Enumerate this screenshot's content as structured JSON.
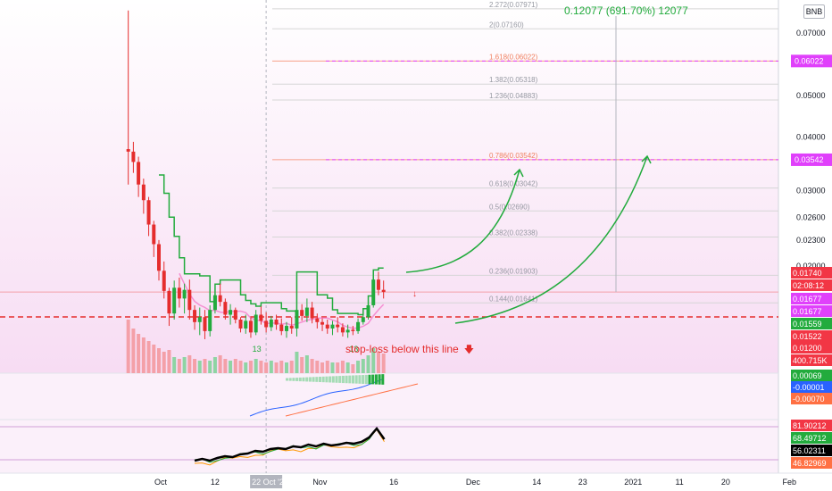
{
  "chart_data": {
    "type": "candlestick",
    "symbol_currency": "BNB",
    "price_scale": {
      "ticks": [
        "0.07000",
        "0.06000",
        "0.05000",
        "0.04000",
        "0.03000",
        "0.02600",
        "0.02300",
        "0.02000"
      ],
      "min": 0.0118,
      "max": 0.082,
      "scale": "log"
    },
    "time_axis": {
      "labels": [
        {
          "text": "Oct",
          "date": "2020-10-01"
        },
        {
          "text": "12",
          "date": "2020-10-12"
        },
        {
          "text": "22 Oct '20",
          "date": "2020-10-22",
          "highlighted": true
        },
        {
          "text": "Nov",
          "date": "2020-11-01"
        },
        {
          "text": "16",
          "date": "2020-11-16"
        },
        {
          "text": "Dec",
          "date": "2020-12-01"
        },
        {
          "text": "14",
          "date": "2020-12-14"
        },
        {
          "text": "23",
          "date": "2020-12-23"
        },
        {
          "text": "2021",
          "date": "2021-01-01"
        },
        {
          "text": "11",
          "date": "2021-01-11"
        },
        {
          "text": "20",
          "date": "2021-01-20"
        },
        {
          "text": "Feb",
          "date": "2021-02-01"
        }
      ]
    },
    "candles": [
      {
        "date": "2020-09-25",
        "open": 0.0375,
        "high": 0.079,
        "low": 0.031,
        "close": 0.037
      },
      {
        "date": "2020-09-26",
        "open": 0.037,
        "high": 0.039,
        "low": 0.033,
        "close": 0.035
      },
      {
        "date": "2020-09-27",
        "open": 0.035,
        "high": 0.036,
        "low": 0.029,
        "close": 0.031
      },
      {
        "date": "2020-09-28",
        "open": 0.031,
        "high": 0.032,
        "low": 0.0265,
        "close": 0.0285
      },
      {
        "date": "2020-09-29",
        "open": 0.0285,
        "high": 0.029,
        "low": 0.0235,
        "close": 0.025
      },
      {
        "date": "2020-09-30",
        "open": 0.025,
        "high": 0.0255,
        "low": 0.021,
        "close": 0.0225
      },
      {
        "date": "2020-10-01",
        "open": 0.0225,
        "high": 0.023,
        "low": 0.0185,
        "close": 0.0195
      },
      {
        "date": "2020-10-02",
        "open": 0.0195,
        "high": 0.0205,
        "low": 0.0168,
        "close": 0.0175
      },
      {
        "date": "2020-10-03",
        "open": 0.0175,
        "high": 0.0178,
        "low": 0.0145,
        "close": 0.0155
      },
      {
        "date": "2020-10-04",
        "open": 0.0155,
        "high": 0.0185,
        "low": 0.015,
        "close": 0.0178
      },
      {
        "date": "2020-10-05",
        "open": 0.0178,
        "high": 0.0188,
        "low": 0.016,
        "close": 0.0168
      },
      {
        "date": "2020-10-06",
        "open": 0.0168,
        "high": 0.0182,
        "low": 0.0155,
        "close": 0.0176
      },
      {
        "date": "2020-10-07",
        "open": 0.0176,
        "high": 0.0186,
        "low": 0.015,
        "close": 0.0158
      },
      {
        "date": "2020-10-08",
        "open": 0.0158,
        "high": 0.0162,
        "low": 0.0142,
        "close": 0.0148
      },
      {
        "date": "2020-10-09",
        "open": 0.0148,
        "high": 0.016,
        "low": 0.0138,
        "close": 0.0152
      },
      {
        "date": "2020-10-10",
        "open": 0.0152,
        "high": 0.0158,
        "low": 0.0135,
        "close": 0.0141
      },
      {
        "date": "2020-10-11",
        "open": 0.0141,
        "high": 0.0162,
        "low": 0.0137,
        "close": 0.0158
      },
      {
        "date": "2020-10-12",
        "open": 0.0158,
        "high": 0.0178,
        "low": 0.0155,
        "close": 0.0171
      },
      {
        "date": "2020-10-13",
        "open": 0.0171,
        "high": 0.0182,
        "low": 0.0161,
        "close": 0.0165
      },
      {
        "date": "2020-10-14",
        "open": 0.0165,
        "high": 0.0168,
        "low": 0.015,
        "close": 0.0154
      },
      {
        "date": "2020-10-15",
        "open": 0.0154,
        "high": 0.0163,
        "low": 0.0146,
        "close": 0.0158
      },
      {
        "date": "2020-10-16",
        "open": 0.0158,
        "high": 0.016,
        "low": 0.0147,
        "close": 0.015
      },
      {
        "date": "2020-10-17",
        "open": 0.015,
        "high": 0.0152,
        "low": 0.014,
        "close": 0.0143
      },
      {
        "date": "2020-10-18",
        "open": 0.0143,
        "high": 0.0154,
        "low": 0.0139,
        "close": 0.0149
      },
      {
        "date": "2020-10-19",
        "open": 0.0149,
        "high": 0.0152,
        "low": 0.0136,
        "close": 0.014
      },
      {
        "date": "2020-10-20",
        "open": 0.014,
        "high": 0.0158,
        "low": 0.0138,
        "close": 0.0154
      },
      {
        "date": "2020-10-21",
        "open": 0.0154,
        "high": 0.0161,
        "low": 0.0146,
        "close": 0.0149
      },
      {
        "date": "2020-10-22",
        "open": 0.0149,
        "high": 0.0156,
        "low": 0.014,
        "close": 0.0144
      },
      {
        "date": "2020-10-23",
        "open": 0.0144,
        "high": 0.0153,
        "low": 0.0141,
        "close": 0.015
      },
      {
        "date": "2020-10-24",
        "open": 0.015,
        "high": 0.0154,
        "low": 0.0142,
        "close": 0.0146
      },
      {
        "date": "2020-10-25",
        "open": 0.0146,
        "high": 0.0151,
        "low": 0.0138,
        "close": 0.0141
      },
      {
        "date": "2020-10-26",
        "open": 0.0141,
        "high": 0.0148,
        "low": 0.0136,
        "close": 0.0145
      },
      {
        "date": "2020-10-27",
        "open": 0.0145,
        "high": 0.0152,
        "low": 0.0139,
        "close": 0.0143
      },
      {
        "date": "2020-10-28",
        "open": 0.0143,
        "high": 0.019,
        "low": 0.0137,
        "close": 0.0158
      },
      {
        "date": "2020-10-29",
        "open": 0.0158,
        "high": 0.0163,
        "low": 0.0149,
        "close": 0.0153
      },
      {
        "date": "2020-10-30",
        "open": 0.0153,
        "high": 0.0168,
        "low": 0.0148,
        "close": 0.016
      },
      {
        "date": "2020-10-31",
        "open": 0.016,
        "high": 0.0165,
        "low": 0.0147,
        "close": 0.0151
      },
      {
        "date": "2020-11-01",
        "open": 0.0151,
        "high": 0.0155,
        "low": 0.0143,
        "close": 0.0148
      },
      {
        "date": "2020-11-02",
        "open": 0.0148,
        "high": 0.0151,
        "low": 0.0141,
        "close": 0.0146
      },
      {
        "date": "2020-11-03",
        "open": 0.0146,
        "high": 0.015,
        "low": 0.0139,
        "close": 0.0143
      },
      {
        "date": "2020-11-04",
        "open": 0.0143,
        "high": 0.0149,
        "low": 0.0138,
        "close": 0.0146
      },
      {
        "date": "2020-11-05",
        "open": 0.0146,
        "high": 0.0152,
        "low": 0.014,
        "close": 0.0144
      },
      {
        "date": "2020-11-06",
        "open": 0.0144,
        "high": 0.0147,
        "low": 0.0137,
        "close": 0.014
      },
      {
        "date": "2020-11-07",
        "open": 0.014,
        "high": 0.0146,
        "low": 0.0136,
        "close": 0.0142
      },
      {
        "date": "2020-11-08",
        "open": 0.0142,
        "high": 0.0145,
        "low": 0.0138,
        "close": 0.0141
      },
      {
        "date": "2020-11-09",
        "open": 0.0141,
        "high": 0.0151,
        "low": 0.0139,
        "close": 0.0148
      },
      {
        "date": "2020-11-10",
        "open": 0.0148,
        "high": 0.0156,
        "low": 0.0146,
        "close": 0.0152
      },
      {
        "date": "2020-11-11",
        "open": 0.0152,
        "high": 0.0167,
        "low": 0.015,
        "close": 0.0162
      },
      {
        "date": "2020-11-12",
        "open": 0.0162,
        "high": 0.0192,
        "low": 0.016,
        "close": 0.0186
      },
      {
        "date": "2020-11-13",
        "open": 0.0186,
        "high": 0.0194,
        "low": 0.0171,
        "close": 0.0176
      },
      {
        "date": "2020-11-14",
        "open": 0.0176,
        "high": 0.0185,
        "low": 0.0168,
        "close": 0.0174
      }
    ],
    "fibonacci_levels": [
      {
        "ratio": "2.272",
        "price": "0.07971"
      },
      {
        "ratio": "2",
        "price": "0.07160"
      },
      {
        "ratio": "1.618",
        "price": "0.06022"
      },
      {
        "ratio": "1.382",
        "price": "0.05318"
      },
      {
        "ratio": "1.236",
        "price": "0.04883"
      },
      {
        "ratio": "0.786",
        "price": "0.03542"
      },
      {
        "ratio": "0.618",
        "price": "0.03042"
      },
      {
        "ratio": "0.5",
        "price": "0.02690"
      },
      {
        "ratio": "0.382",
        "price": "0.02338"
      },
      {
        "ratio": "0.236",
        "price": "0.01903"
      },
      {
        "ratio": "0.144",
        "price": "0.01641"
      }
    ],
    "target_lines": [
      {
        "price": 0.06022,
        "label": "0.06022",
        "color": "#e040fb"
      },
      {
        "price": 0.03542,
        "label": "0.03542",
        "color": "#e040fb"
      }
    ],
    "stop_loss": {
      "price": 0.01522,
      "text": "stop-loss below this line"
    },
    "measure": {
      "text": "0.12077 (691.70%) 12077"
    },
    "price_labels": [
      {
        "text": "0.01740",
        "bg": "#f23645"
      },
      {
        "text": "02:08:12",
        "bg": "#f23645"
      },
      {
        "text": "0.01677",
        "bg": "#e040fb"
      },
      {
        "text": "0.01677",
        "bg": "#e040fb"
      },
      {
        "text": "0.01559",
        "bg": "#22ab3d"
      },
      {
        "text": "0.01522",
        "bg": "#f23645"
      },
      {
        "text": "0.01200",
        "bg": "#f23645"
      },
      {
        "text": "400.715K",
        "bg": "#f23645"
      }
    ],
    "volume": [
      30,
      25,
      22,
      20,
      18,
      16,
      14,
      12,
      13,
      9,
      8,
      9,
      10,
      8,
      7,
      8,
      7,
      9,
      10,
      8,
      7,
      8,
      7,
      6,
      7,
      8,
      7,
      6,
      7,
      6,
      7,
      6,
      7,
      12,
      9,
      10,
      8,
      7,
      6,
      7,
      6,
      6,
      7,
      6,
      5,
      7,
      8,
      10,
      14,
      12,
      11
    ],
    "macd_panel": {
      "labels": [
        {
          "text": "0.00069",
          "bg": "#22ab3d"
        },
        {
          "text": "-0.00001",
          "bg": "#2962ff"
        },
        {
          "text": "-0.00070",
          "bg": "#ff7043"
        }
      ]
    },
    "rsi_panel": {
      "labels": [
        {
          "text": "81.90212",
          "bg": "#f23645"
        },
        {
          "text": "68.49712",
          "bg": "#22ab3d"
        },
        {
          "text": "56.02311",
          "bg": "#000000"
        },
        {
          "text": "46.82969",
          "bg": "#ff7043"
        }
      ]
    },
    "td_annotations": [
      "13",
      "13",
      "13"
    ]
  },
  "ui": {
    "currency_button": "BNB"
  }
}
